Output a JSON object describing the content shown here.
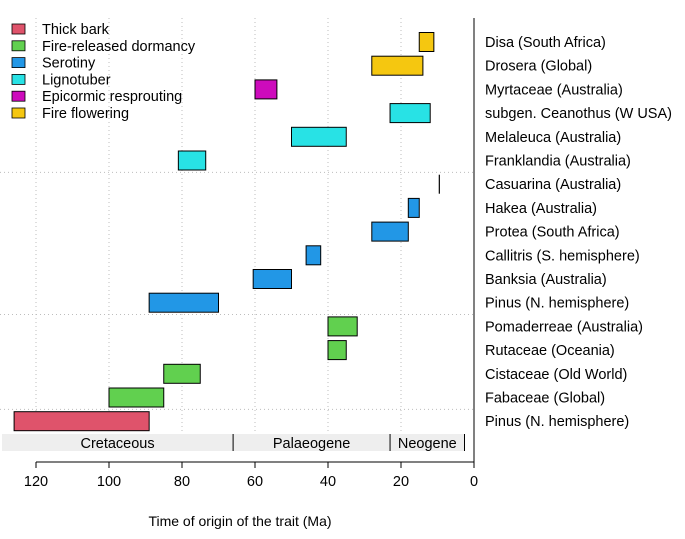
{
  "chart_data": {
    "type": "bar",
    "orientation": "horizontal-range",
    "xlabel": "Time of origin of the trait (Ma)",
    "x_reversed": true,
    "xlim": [
      130,
      0
    ],
    "xticks": [
      120,
      100,
      80,
      60,
      40,
      20,
      0
    ],
    "grid": "dotted",
    "legend_position": "top-left",
    "traits": [
      {
        "name": "Thick bark",
        "color": "#DF536B"
      },
      {
        "name": "Fire-released dormancy",
        "color": "#61D04F"
      },
      {
        "name": "Serotiny",
        "color": "#2297E6"
      },
      {
        "name": "Lignotuber",
        "color": "#28E2E5"
      },
      {
        "name": "Epicormic resprouting",
        "color": "#CD0BBC"
      },
      {
        "name": "Fire flowering",
        "color": "#F5C710"
      }
    ],
    "taxa": [
      {
        "label": "Disa (South Africa)",
        "trait": "Fire flowering",
        "start": 15,
        "end": 11
      },
      {
        "label": "Drosera (Global)",
        "trait": "Fire flowering",
        "start": 28,
        "end": 14
      },
      {
        "label": "Myrtaceae (Australia)",
        "trait": "Epicormic resprouting",
        "start": 60,
        "end": 54
      },
      {
        "label": "subgen. Ceanothus (W USA)",
        "trait": "Lignotuber",
        "start": 23,
        "end": 12
      },
      {
        "label": "Melaleuca (Australia)",
        "trait": "Lignotuber",
        "start": 50,
        "end": 35
      },
      {
        "label": "Franklandia (Australia)",
        "trait": "Lignotuber",
        "start": 81,
        "end": 73.5
      },
      {
        "label": "Casuarina (Australia)",
        "trait": "Serotiny",
        "start": 9.5,
        "end": 9.5
      },
      {
        "label": "Hakea (Australia)",
        "trait": "Serotiny",
        "start": 18,
        "end": 15
      },
      {
        "label": "Protea (South Africa)",
        "trait": "Serotiny",
        "start": 28,
        "end": 18
      },
      {
        "label": "Callitris (S. hemisphere)",
        "trait": "Serotiny",
        "start": 46,
        "end": 42
      },
      {
        "label": "Banksia (Australia)",
        "trait": "Serotiny",
        "start": 60.5,
        "end": 50
      },
      {
        "label": "Pinus (N. hemisphere)",
        "trait": "Serotiny",
        "start": 89,
        "end": 70
      },
      {
        "label": "Pomaderreae (Australia)",
        "trait": "Fire-released dormancy",
        "start": 40,
        "end": 32
      },
      {
        "label": "Rutaceae (Oceania)",
        "trait": "Fire-released dormancy",
        "start": 40,
        "end": 35
      },
      {
        "label": "Cistaceae (Old World)",
        "trait": "Fire-released dormancy",
        "start": 85,
        "end": 75
      },
      {
        "label": "Fabaceae (Global)",
        "trait": "Fire-released dormancy",
        "start": 100,
        "end": 85
      },
      {
        "label": "Pinus (N. hemisphere)",
        "trait": "Thick bark",
        "start": 126,
        "end": 89
      }
    ],
    "periods": [
      {
        "name": "Cretaceous",
        "start": 130,
        "end": 66
      },
      {
        "name": "Palaeogene",
        "start": 66,
        "end": 23
      },
      {
        "name": "Neogene",
        "start": 23,
        "end": 2.6
      }
    ]
  }
}
